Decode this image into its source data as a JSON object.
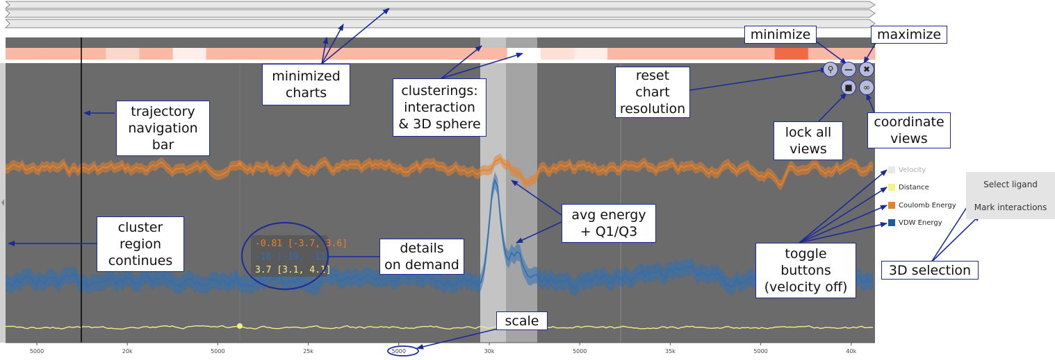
{
  "colors": {
    "coulomb": "#e8822a",
    "vdw": "#2d6fb5",
    "distance": "#f2ee8a",
    "velocity": "#e8e8e8",
    "panel_bg": "#6b6b6b",
    "callout_border": "#1a2a9a",
    "highlight_light": "#c4c4c4",
    "highlight_mid": "#a4a4a4"
  },
  "legend": [
    {
      "label": "Velocity",
      "color": "#e8e8e8",
      "state": "off"
    },
    {
      "label": "Distance",
      "color": "#f5f08a",
      "state": "on"
    },
    {
      "label": "Coulomb Energy",
      "color": "#e8822a",
      "state": "on"
    },
    {
      "label": "VDW Energy",
      "color": "#1f5a9a",
      "state": "on"
    }
  ],
  "selection_panel": {
    "select_ligand": "Select ligand",
    "mark_interactions": "Mark interactions"
  },
  "controls": {
    "reset_icon": "magnifier-reset-icon",
    "minimize_icon": "minus-icon",
    "maximize_icon": "expand-arrows-icon",
    "lock_icon": "lock-icon",
    "link_icon": "link-icon"
  },
  "details_on_demand": {
    "coulomb": "-0.81 [-3.7, 3.6]",
    "vdw": "-16 [-19, -13]",
    "distance": "3.7 [3.1, 4.1]"
  },
  "axis": {
    "ticks": [
      "5000",
      "20k",
      "5000",
      "25k",
      "5000",
      "30k",
      "5000",
      "35k",
      "5000",
      "40k"
    ]
  },
  "clustering_strip": [
    "#f9b9a3",
    "#f9b9a3",
    "#f9b9a3",
    "#fcd8cc",
    "#f9b9a3",
    "#fdeee9",
    "#f9b9a3",
    "#f9b9a3",
    "#f9b9a3",
    "#f9b9a3",
    "#f9b9a3",
    "#f9b9a3",
    "#f9b9a3",
    "#f9b9a3",
    "#f9b9a3",
    "#ffffff",
    "#fde0d6",
    "#fdeee9",
    "#f9b9a3",
    "#f9b9a3",
    "#f9b9a3",
    "#f9b9a3",
    "#f9b9a3",
    "#f26a45",
    "#f9b9a3",
    "#f9b9a3"
  ],
  "annotations": {
    "minimize": "minimize",
    "maximize": "maximize",
    "minimized_charts": "minimized\ncharts",
    "clusterings": "clusterings:\ninteraction\n& 3D sphere",
    "reset_chart": "reset\nchart\nresolution",
    "trajectory_nav": "trajectory\nnavigation\nbar",
    "lock_all": "lock all\nviews",
    "coordinate_views": "coordinate\nviews",
    "avg_energy": "avg energy\n+ Q1/Q3",
    "cluster_region": "cluster\nregion\ncontinues",
    "details": "details\non demand",
    "toggle_buttons": "toggle\nbuttons\n(velocity off)",
    "selection_3d": "3D selection",
    "scale": "scale"
  }
}
